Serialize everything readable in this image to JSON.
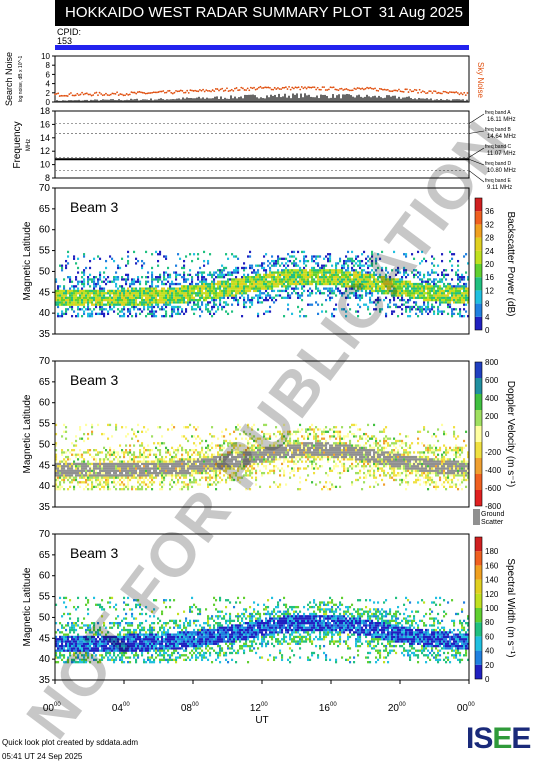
{
  "header": {
    "title": "HOKKAIDO WEST RADAR SUMMARY PLOT",
    "date": "31 Aug 2025"
  },
  "cpid": {
    "label": "CPID:",
    "value": "153"
  },
  "watermark": "NOT FOR PUBLICATION",
  "footer": {
    "line1": "Quick look plot created by sddata.adm",
    "line2": "05:41 UT 24 Sep 2025"
  },
  "logo": {
    "text_a": "IS",
    "text_b": "E",
    "text_c": "E"
  },
  "colors": {
    "accent": "#2222ee",
    "noise": "#e05010"
  },
  "chart_data": [
    {
      "type": "line",
      "name": "noise",
      "ylabel": "Search Noise",
      "ylabel2": "log noise, dB x 10^-1",
      "right_label": "Sky Noise",
      "ylim": [
        0,
        10
      ],
      "yticks": [
        "0",
        "2",
        "4",
        "6",
        "8",
        "10"
      ],
      "x": [
        0,
        2,
        4,
        6,
        8,
        10,
        12,
        14,
        16,
        18,
        20,
        22,
        24
      ],
      "sky_noise": [
        1.6,
        1.7,
        1.8,
        2.0,
        2.3,
        2.7,
        3.0,
        3.0,
        2.9,
        2.8,
        2.6,
        2.1,
        1.7
      ],
      "search_noise": [
        0.3,
        0.4,
        0.5,
        0.6,
        0.8,
        1.0,
        1.3,
        1.4,
        1.3,
        1.2,
        1.0,
        0.6,
        0.4
      ]
    },
    {
      "type": "line",
      "name": "frequency",
      "ylabel": "Frequency",
      "ylabel2": "MHz",
      "ylim": [
        8,
        18
      ],
      "yticks": [
        "8",
        "10",
        "12",
        "14",
        "16",
        "18"
      ],
      "bands": [
        {
          "label": "freq band A",
          "mhz_text": "16.11 MHz",
          "mhz": 16.11
        },
        {
          "label": "freq band B",
          "mhz_text": "14.64 MHz",
          "mhz": 14.64
        },
        {
          "label": "freq band C",
          "mhz_text": "11.07 MHz",
          "mhz": 11.07
        },
        {
          "label": "freq band D",
          "mhz_text": "10.80 MHz",
          "mhz": 10.8
        },
        {
          "label": "freq band E",
          "mhz_text": "9.11 MHz",
          "mhz": 9.11
        }
      ],
      "operating_mhz": 10.8
    },
    {
      "type": "heatmap",
      "name": "power",
      "beam": "Beam  3",
      "ylabel": "Magnetic Latitude",
      "ylim": [
        35,
        70
      ],
      "yticks": [
        "35",
        "40",
        "45",
        "50",
        "55",
        "60",
        "65",
        "70"
      ],
      "colorbar_label": "Backscatter Power (dB)",
      "colorbar_ticks": [
        "0",
        "4",
        "8",
        "12",
        "16",
        "20",
        "24",
        "28",
        "32",
        "36"
      ]
    },
    {
      "type": "heatmap",
      "name": "velocity",
      "beam": "Beam  3",
      "ylabel": "Magnetic Latitude",
      "ylim": [
        35,
        70
      ],
      "yticks": [
        "35",
        "40",
        "45",
        "50",
        "55",
        "60",
        "65",
        "70"
      ],
      "colorbar_label": "Doppler Velocity (m s⁻¹)",
      "colorbar_ticks": [
        "-800",
        "-600",
        "-400",
        "-200",
        "0",
        "200",
        "400",
        "600",
        "800"
      ],
      "ground_label_1": "Ground",
      "ground_label_2": "Scatter"
    },
    {
      "type": "heatmap",
      "name": "width",
      "beam": "Beam  3",
      "ylabel": "Magnetic Latitude",
      "ylim": [
        35,
        70
      ],
      "yticks": [
        "35",
        "40",
        "45",
        "50",
        "55",
        "60",
        "65",
        "70"
      ],
      "colorbar_label": "Spectral Width (m s⁻¹)",
      "colorbar_ticks": [
        "0",
        "20",
        "40",
        "60",
        "80",
        "100",
        "120",
        "140",
        "160",
        "180"
      ],
      "xlabel": "UT",
      "xticks": [
        "00",
        "04",
        "08",
        "12",
        "16",
        "20",
        "00"
      ],
      "xtick_sup": "00",
      "xlim": [
        0,
        24
      ]
    }
  ]
}
